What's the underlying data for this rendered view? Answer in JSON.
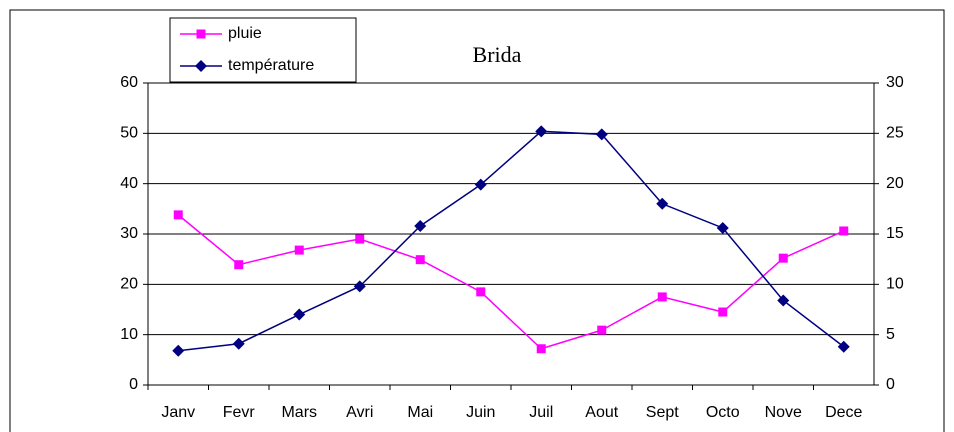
{
  "chart_data": {
    "type": "line",
    "title": "Brida",
    "categories": [
      "Janv",
      "Fevr",
      "Mars",
      "Avri",
      "Mai",
      "Juin",
      "Juil",
      "Aout",
      "Sept",
      "Octo",
      "Nove",
      "Dece"
    ],
    "series": [
      {
        "name": "pluie",
        "color": "#ff00ff",
        "marker": "square",
        "values": [
          33.8,
          23.9,
          26.8,
          29,
          24.9,
          18.5,
          7.2,
          10.9,
          17.5,
          14.5,
          25.2,
          30.6
        ]
      },
      {
        "name": "température",
        "color": "#000080",
        "marker": "diamond",
        "axis": "y2",
        "values": [
          3.4,
          4.1,
          7.0,
          9.8,
          15.8,
          19.9,
          25.2,
          24.9,
          18.0,
          15.6,
          8.4,
          3.8
        ]
      }
    ],
    "ylim": [
      0,
      60
    ],
    "yticks": [
      0,
      10,
      20,
      30,
      40,
      50,
      60
    ],
    "y2lim": [
      0,
      30
    ],
    "y2ticks": [
      0,
      5,
      10,
      15,
      20,
      25,
      30
    ],
    "grid": true,
    "legend": "top-left"
  }
}
